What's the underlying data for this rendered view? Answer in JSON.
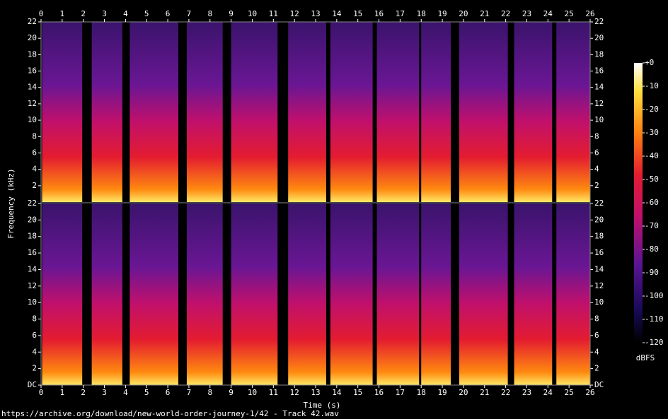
{
  "chart_data": {
    "type": "spectrogram",
    "x_label": "Time (s)",
    "y_label": "Frequency (kHz)",
    "xlim": [
      0,
      26
    ],
    "xticks": [
      0,
      1,
      2,
      3,
      4,
      5,
      6,
      7,
      8,
      9,
      10,
      11,
      12,
      13,
      14,
      15,
      16,
      17,
      18,
      19,
      20,
      21,
      22,
      23,
      24,
      25,
      26
    ],
    "channels": [
      {
        "ylim": [
          0,
          22
        ],
        "yticks": [
          2,
          4,
          6,
          8,
          10,
          12,
          14,
          16,
          18,
          20,
          22
        ]
      },
      {
        "ylim": [
          0,
          22
        ],
        "yticks": [
          {
            "value": 0,
            "label": "DC"
          },
          2,
          4,
          6,
          8,
          10,
          12,
          14,
          16,
          18,
          20,
          22
        ]
      }
    ],
    "segments": [
      [
        0.05,
        1.95
      ],
      [
        2.4,
        3.85
      ],
      [
        4.2,
        6.5
      ],
      [
        6.9,
        8.6
      ],
      [
        9.0,
        11.2
      ],
      [
        11.7,
        13.5
      ],
      [
        13.7,
        15.7
      ],
      [
        15.9,
        17.9
      ],
      [
        18.0,
        19.4
      ],
      [
        19.8,
        22.1
      ],
      [
        22.4,
        24.2
      ],
      [
        24.4,
        26
      ]
    ],
    "colorbar": {
      "label": "dBFS",
      "lim": [
        -120,
        0
      ],
      "ticks": [
        {
          "value": 0,
          "label": "+0"
        },
        -10,
        -20,
        -30,
        -40,
        -50,
        -60,
        -70,
        -80,
        -90,
        -100,
        -110,
        -120
      ]
    }
  },
  "footer": "https://archive.org/download/new-world-order-journey-1/42 - Track 42.wav"
}
